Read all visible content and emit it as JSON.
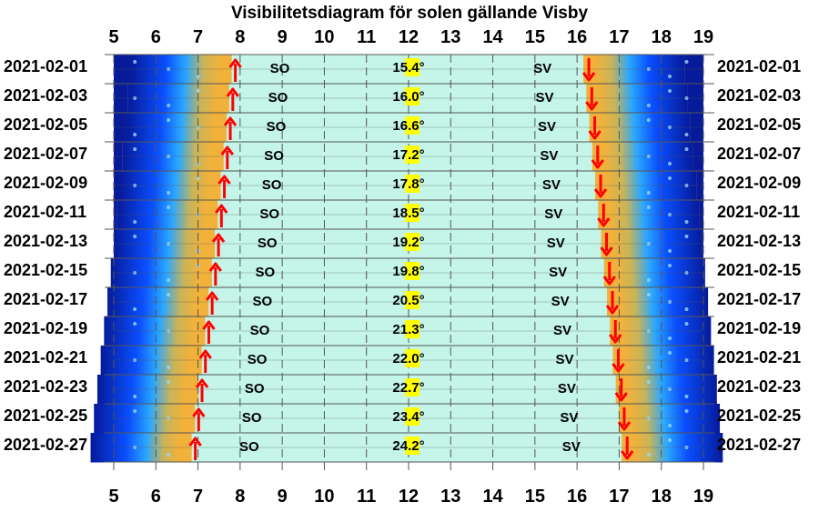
{
  "chart_data": {
    "type": "visibility-diagram",
    "title": "Visibilitetsdiagram för solen gällande Visby",
    "x_ticks": [
      "5",
      "6",
      "7",
      "8",
      "9",
      "10",
      "11",
      "12",
      "13",
      "14",
      "15",
      "16",
      "17",
      "18",
      "19"
    ],
    "xlim": [
      5,
      19
    ],
    "colors": {
      "day": "#c4f5e8",
      "twilight_gold": "#f2b13a",
      "twilight_blue": "#0a4fff",
      "night": "#061a9a",
      "sun_arrow": "#ff0000",
      "elevation_highlight": "#ffff00",
      "grid": "#555555"
    },
    "rows": [
      {
        "date": "2021-02-01",
        "sunrise": 7.8,
        "sunset": 16.15,
        "max_elevation": "15.4°",
        "rise_dir": "SO",
        "set_dir": "SV"
      },
      {
        "date": "2021-02-03",
        "sunrise": 7.74,
        "sunset": 16.22,
        "max_elevation": "16.0°",
        "rise_dir": "SO",
        "set_dir": "SV"
      },
      {
        "date": "2021-02-05",
        "sunrise": 7.68,
        "sunset": 16.29,
        "max_elevation": "16.6°",
        "rise_dir": "SO",
        "set_dir": "SV"
      },
      {
        "date": "2021-02-07",
        "sunrise": 7.61,
        "sunset": 16.36,
        "max_elevation": "17.2°",
        "rise_dir": "SO",
        "set_dir": "SV"
      },
      {
        "date": "2021-02-09",
        "sunrise": 7.54,
        "sunset": 16.43,
        "max_elevation": "17.8°",
        "rise_dir": "SO",
        "set_dir": "SV"
      },
      {
        "date": "2021-02-11",
        "sunrise": 7.47,
        "sunset": 16.5,
        "max_elevation": "18.5°",
        "rise_dir": "SO",
        "set_dir": "SV"
      },
      {
        "date": "2021-02-13",
        "sunrise": 7.4,
        "sunset": 16.57,
        "max_elevation": "19.2°",
        "rise_dir": "SO",
        "set_dir": "SV"
      },
      {
        "date": "2021-02-15",
        "sunrise": 7.33,
        "sunset": 16.64,
        "max_elevation": "19.8°",
        "rise_dir": "SO",
        "set_dir": "SV"
      },
      {
        "date": "2021-02-17",
        "sunrise": 7.25,
        "sunset": 16.71,
        "max_elevation": "20.5°",
        "rise_dir": "SO",
        "set_dir": "SV"
      },
      {
        "date": "2021-02-19",
        "sunrise": 7.17,
        "sunset": 16.78,
        "max_elevation": "21.3°",
        "rise_dir": "SO",
        "set_dir": "SV"
      },
      {
        "date": "2021-02-21",
        "sunrise": 7.09,
        "sunset": 16.85,
        "max_elevation": "22.0°",
        "rise_dir": "SO",
        "set_dir": "SV"
      },
      {
        "date": "2021-02-23",
        "sunrise": 7.01,
        "sunset": 16.92,
        "max_elevation": "22.7°",
        "rise_dir": "SO",
        "set_dir": "SV"
      },
      {
        "date": "2021-02-25",
        "sunrise": 6.93,
        "sunset": 16.99,
        "max_elevation": "23.4°",
        "rise_dir": "SO",
        "set_dir": "SV"
      },
      {
        "date": "2021-02-27",
        "sunrise": 6.85,
        "sunset": 17.06,
        "max_elevation": "24.2°",
        "rise_dir": "SO",
        "set_dir": "SV"
      }
    ]
  }
}
